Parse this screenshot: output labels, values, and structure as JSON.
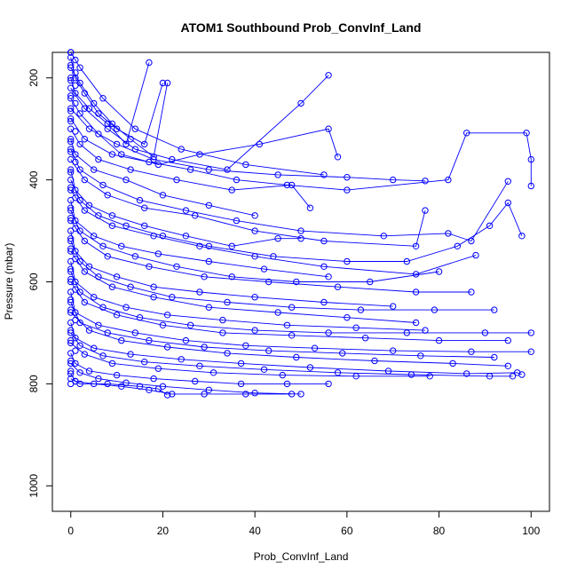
{
  "chart_data": {
    "type": "line",
    "title": "ATOM1 Southbound Prob_ConvInf_Land",
    "xlabel": "Prob_ConvInf_Land",
    "ylabel": "Pressure (mbar)",
    "xlim": [
      -4,
      104
    ],
    "ylim": [
      1050,
      150
    ],
    "y_reversed": true,
    "xticks": [
      0,
      20,
      40,
      60,
      80,
      100
    ],
    "yticks": [
      200,
      400,
      600,
      800,
      1000
    ],
    "grid": false,
    "legend": "none",
    "color": "#0000ff",
    "marker": "open-circle",
    "series": [
      {
        "x": [
          0,
          2,
          7,
          14,
          24,
          38,
          55
        ],
        "y": [
          150,
          180,
          240,
          300,
          340,
          370,
          390
        ]
      },
      {
        "x": [
          0,
          1,
          3,
          6,
          10,
          16,
          20
        ],
        "y": [
          160,
          200,
          230,
          270,
          300,
          330,
          210
        ]
      },
      {
        "x": [
          0,
          2,
          5,
          9,
          13,
          18,
          21
        ],
        "y": [
          180,
          210,
          250,
          290,
          320,
          355,
          210
        ]
      },
      {
        "x": [
          0,
          1,
          4,
          8,
          12,
          17
        ],
        "y": [
          200,
          230,
          260,
          290,
          330,
          170
        ]
      },
      {
        "x": [
          0,
          3,
          8,
          14,
          22,
          34,
          50,
          56
        ],
        "y": [
          220,
          260,
          300,
          340,
          360,
          380,
          250,
          195
        ]
      },
      {
        "x": [
          0,
          2,
          6,
          11,
          19,
          28,
          41,
          56,
          58
        ],
        "y": [
          240,
          270,
          310,
          350,
          370,
          350,
          330,
          300,
          355
        ]
      },
      {
        "x": [
          0,
          4,
          10,
          18,
          30,
          45,
          60,
          70,
          77
        ],
        "y": [
          260,
          300,
          330,
          360,
          380,
          390,
          395,
          400,
          402
        ]
      },
      {
        "x": [
          0,
          3,
          9,
          17,
          26,
          36,
          47,
          60,
          82,
          86,
          99,
          100,
          100
        ],
        "y": [
          280,
          320,
          350,
          365,
          380,
          400,
          410,
          420,
          400,
          308,
          308,
          360,
          412
        ]
      },
      {
        "x": [
          0,
          2,
          6,
          13,
          23,
          35,
          48,
          52
        ],
        "y": [
          300,
          330,
          360,
          380,
          400,
          420,
          410,
          455
        ]
      },
      {
        "x": [
          0,
          1,
          5,
          12,
          20,
          30,
          40
        ],
        "y": [
          320,
          350,
          380,
          400,
          430,
          450,
          470
        ]
      },
      {
        "x": [
          0,
          2,
          7,
          15,
          25,
          36,
          50,
          68,
          82,
          87,
          95
        ],
        "y": [
          340,
          380,
          410,
          440,
          460,
          480,
          500,
          510,
          505,
          520,
          403
        ]
      },
      {
        "x": [
          0,
          3,
          8,
          16,
          27,
          40,
          55,
          75,
          77
        ],
        "y": [
          360,
          400,
          430,
          455,
          470,
          500,
          520,
          530,
          460
        ]
      },
      {
        "x": [
          0,
          1,
          4,
          9,
          16,
          25,
          35,
          45,
          50
        ],
        "y": [
          380,
          420,
          450,
          470,
          490,
          510,
          530,
          515,
          515
        ]
      },
      {
        "x": [
          0,
          2,
          6,
          12,
          20,
          30,
          44,
          60,
          73,
          84,
          91,
          95,
          98
        ],
        "y": [
          400,
          440,
          470,
          490,
          510,
          530,
          550,
          560,
          560,
          530,
          490,
          445,
          510
        ]
      },
      {
        "x": [
          0,
          3,
          9,
          18,
          28,
          40,
          55,
          75,
          88
        ],
        "y": [
          420,
          460,
          490,
          510,
          530,
          550,
          570,
          585,
          548
        ]
      },
      {
        "x": [
          0,
          1,
          5,
          11,
          19,
          30,
          42,
          56
        ],
        "y": [
          440,
          480,
          510,
          530,
          545,
          560,
          575,
          590
        ]
      },
      {
        "x": [
          0,
          2,
          7,
          14,
          23,
          35,
          49,
          65,
          80
        ],
        "y": [
          460,
          500,
          530,
          550,
          570,
          590,
          600,
          600,
          580
        ]
      },
      {
        "x": [
          0,
          3,
          8,
          17,
          29,
          43,
          58,
          75,
          87
        ],
        "y": [
          480,
          520,
          550,
          570,
          590,
          600,
          610,
          620,
          620
        ]
      },
      {
        "x": [
          0,
          1,
          4,
          10,
          18,
          28,
          40,
          55,
          70
        ],
        "y": [
          500,
          540,
          570,
          590,
          610,
          620,
          630,
          640,
          648
        ]
      },
      {
        "x": [
          0,
          2,
          6,
          13,
          22,
          34,
          48,
          63,
          79,
          92
        ],
        "y": [
          520,
          560,
          590,
          610,
          630,
          640,
          650,
          655,
          655,
          655
        ]
      },
      {
        "x": [
          0,
          3,
          9,
          18,
          30,
          45,
          60,
          75
        ],
        "y": [
          540,
          580,
          610,
          630,
          650,
          660,
          670,
          680
        ]
      },
      {
        "x": [
          0,
          1,
          5,
          12,
          21,
          33,
          47,
          62,
          77
        ],
        "y": [
          560,
          600,
          630,
          650,
          665,
          675,
          685,
          690,
          695
        ]
      },
      {
        "x": [
          0,
          2,
          7,
          15,
          26,
          40,
          56,
          73,
          90,
          100
        ],
        "y": [
          580,
          620,
          650,
          670,
          685,
          695,
          700,
          700,
          700,
          700
        ]
      },
      {
        "x": [
          0,
          3,
          10,
          20,
          33,
          48,
          64,
          80,
          95
        ],
        "y": [
          600,
          640,
          665,
          685,
          700,
          705,
          710,
          715,
          715
        ]
      },
      {
        "x": [
          0,
          1,
          6,
          14,
          25,
          38,
          53,
          70,
          87,
          100
        ],
        "y": [
          620,
          660,
          685,
          700,
          715,
          725,
          730,
          735,
          737,
          737
        ]
      },
      {
        "x": [
          0,
          2,
          8,
          17,
          29,
          43,
          59,
          76,
          92
        ],
        "y": [
          640,
          680,
          700,
          715,
          728,
          735,
          740,
          745,
          748
        ]
      },
      {
        "x": [
          0,
          4,
          11,
          21,
          34,
          49,
          66,
          83,
          95
        ],
        "y": [
          660,
          695,
          715,
          728,
          740,
          748,
          755,
          760,
          765
        ]
      },
      {
        "x": [
          0,
          1,
          5,
          13,
          24,
          37,
          52,
          69,
          86,
          97,
          98
        ],
        "y": [
          680,
          710,
          730,
          742,
          752,
          760,
          768,
          775,
          780,
          778,
          782
        ]
      },
      {
        "x": [
          0,
          2,
          7,
          16,
          28,
          42,
          58,
          74,
          91,
          96
        ],
        "y": [
          700,
          725,
          745,
          757,
          765,
          772,
          778,
          782,
          785,
          785
        ]
      },
      {
        "x": [
          0,
          3,
          9,
          19,
          31,
          46,
          62,
          78
        ],
        "y": [
          720,
          742,
          760,
          770,
          778,
          783,
          785,
          785
        ]
      },
      {
        "x": [
          0,
          1,
          4,
          10,
          18,
          27,
          37,
          47,
          56
        ],
        "y": [
          740,
          760,
          775,
          783,
          790,
          795,
          800,
          800,
          800
        ]
      },
      {
        "x": [
          0,
          2,
          6,
          12,
          20,
          30,
          40,
          50
        ],
        "y": [
          760,
          778,
          790,
          798,
          805,
          812,
          818,
          820
        ]
      },
      {
        "x": [
          0,
          1,
          5,
          11,
          17,
          22,
          29,
          38,
          48
        ],
        "y": [
          780,
          795,
          800,
          805,
          812,
          820,
          820,
          820,
          820
        ]
      },
      {
        "x": [
          0,
          2,
          8,
          15,
          19,
          21
        ],
        "y": [
          790,
          800,
          800,
          805,
          810,
          822
        ]
      }
    ],
    "extra_points": [
      {
        "x": 0,
        "y": 150
      },
      {
        "x": 1,
        "y": 165
      },
      {
        "x": 0,
        "y": 175
      },
      {
        "x": 1,
        "y": 190
      },
      {
        "x": 0,
        "y": 205
      },
      {
        "x": 1,
        "y": 215
      },
      {
        "x": 0,
        "y": 235
      },
      {
        "x": 1,
        "y": 250
      },
      {
        "x": 0,
        "y": 265
      },
      {
        "x": 0,
        "y": 285
      },
      {
        "x": 1,
        "y": 305
      },
      {
        "x": 0,
        "y": 325
      },
      {
        "x": 0,
        "y": 345
      },
      {
        "x": 1,
        "y": 365
      },
      {
        "x": 0,
        "y": 385
      },
      {
        "x": 0,
        "y": 415
      },
      {
        "x": 1,
        "y": 435
      },
      {
        "x": 0,
        "y": 455
      },
      {
        "x": 0,
        "y": 475
      },
      {
        "x": 1,
        "y": 495
      },
      {
        "x": 0,
        "y": 515
      },
      {
        "x": 0,
        "y": 535
      },
      {
        "x": 1,
        "y": 555
      },
      {
        "x": 0,
        "y": 575
      },
      {
        "x": 0,
        "y": 595
      },
      {
        "x": 1,
        "y": 615
      },
      {
        "x": 0,
        "y": 635
      },
      {
        "x": 0,
        "y": 655
      },
      {
        "x": 1,
        "y": 675
      },
      {
        "x": 0,
        "y": 695
      },
      {
        "x": 0,
        "y": 715
      },
      {
        "x": 1,
        "y": 735
      },
      {
        "x": 0,
        "y": 755
      },
      {
        "x": 0,
        "y": 775
      },
      {
        "x": 1,
        "y": 795
      },
      {
        "x": 0,
        "y": 800
      }
    ]
  }
}
